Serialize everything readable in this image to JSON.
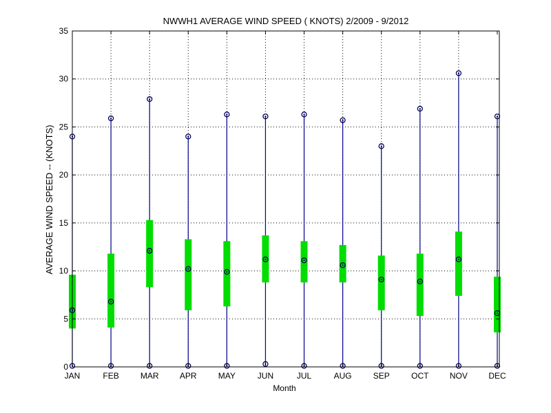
{
  "chart_data": {
    "type": "box",
    "title": "NWWH1  AVERAGE WIND SPEED ( KNOTS) 2/2009 - 9/2012",
    "xlabel": "Month",
    "ylabel": "AVERAGE WIND SPEED -- (KNOTS)",
    "ylim": [
      0,
      35
    ],
    "yticks": [
      0,
      5,
      10,
      15,
      20,
      25,
      30,
      35
    ],
    "grid": true,
    "categories": [
      "JAN",
      "FEB",
      "MAR",
      "APR",
      "MAY",
      "JUN",
      "JUL",
      "AUG",
      "SEP",
      "OCT",
      "NOV",
      "DEC"
    ],
    "series": [
      {
        "values_min": [
          0.1,
          0.1,
          0.1,
          0.1,
          0.1,
          0.3,
          0.1,
          0.1,
          0.1,
          0.1,
          0.1,
          0.1
        ]
      },
      {
        "values_q1": [
          4.0,
          4.1,
          8.3,
          5.9,
          6.3,
          8.8,
          8.8,
          8.8,
          5.9,
          5.3,
          7.4,
          3.6
        ]
      },
      {
        "values_median": [
          5.9,
          6.8,
          12.1,
          10.2,
          9.9,
          11.2,
          11.1,
          10.6,
          9.1,
          8.9,
          11.2,
          5.6
        ]
      },
      {
        "values_q3": [
          9.6,
          11.8,
          15.3,
          13.3,
          13.1,
          13.7,
          13.1,
          12.7,
          11.6,
          11.8,
          14.1,
          9.4
        ]
      },
      {
        "values_max": [
          24.0,
          25.9,
          27.9,
          24.0,
          26.3,
          26.1,
          26.3,
          25.7,
          23.0,
          26.9,
          30.6,
          26.1
        ]
      }
    ],
    "colors": {
      "whisker": "#00008b",
      "box": "#00dd00",
      "marker": "#00005a",
      "grid": "#000000",
      "axes": "#000000"
    }
  }
}
